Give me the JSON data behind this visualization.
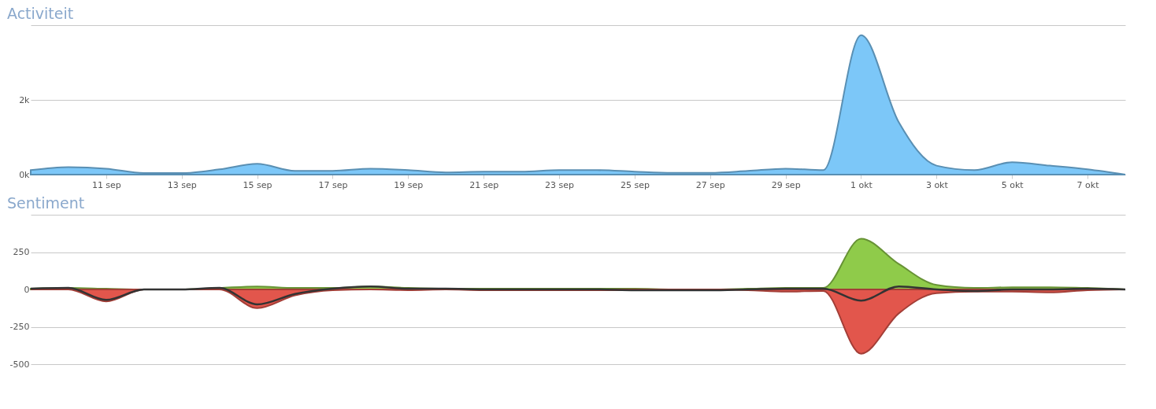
{
  "chart_data": [
    {
      "type": "area",
      "title": "Activiteit",
      "grid": "y",
      "x": [
        "--09-09",
        "--09-10",
        "--09-11",
        "--09-12",
        "--09-13",
        "--09-14",
        "--09-15",
        "--09-16",
        "--09-17",
        "--09-18",
        "--09-19",
        "--09-20",
        "--09-21",
        "--09-22",
        "--09-23",
        "--09-24",
        "--09-25",
        "--09-26",
        "--09-27",
        "--09-28",
        "--09-29",
        "--09-30",
        "--10-01",
        "--10-02",
        "--10-03",
        "--10-04",
        "--10-05",
        "--10-06",
        "--10-07",
        "--10-08"
      ],
      "series": [
        {
          "color": "#7cc7f8",
          "values": [
            120,
            200,
            160,
            40,
            40,
            140,
            290,
            100,
            100,
            160,
            120,
            60,
            80,
            80,
            120,
            120,
            80,
            50,
            50,
            100,
            160,
            120,
            3730,
            1400,
            240,
            120,
            330,
            240,
            140,
            0
          ]
        }
      ],
      "xlim": [
        "--09-09",
        "--10-08"
      ],
      "xticks": [
        {
          "value": "--09-11",
          "label": "11 sep"
        },
        {
          "value": "--09-13",
          "label": "13 sep"
        },
        {
          "value": "--09-15",
          "label": "15 sep"
        },
        {
          "value": "--09-17",
          "label": "17 sep"
        },
        {
          "value": "--09-19",
          "label": "19 sep"
        },
        {
          "value": "--09-21",
          "label": "21 sep"
        },
        {
          "value": "--09-23",
          "label": "23 sep"
        },
        {
          "value": "--09-25",
          "label": "25 sep"
        },
        {
          "value": "--09-27",
          "label": "27 sep"
        },
        {
          "value": "--09-29",
          "label": "29 sep"
        },
        {
          "value": "--10-01",
          "label": "1 okt"
        },
        {
          "value": "--10-03",
          "label": "3 okt"
        },
        {
          "value": "--10-05",
          "label": "5 okt"
        },
        {
          "value": "--10-07",
          "label": "7 okt"
        }
      ],
      "ylim": [
        0,
        4000
      ],
      "yticks": [
        {
          "value": 0,
          "label": "0k"
        },
        {
          "value": 2000,
          "label": "2k"
        },
        {
          "value": 4000,
          "label": null
        }
      ]
    },
    {
      "type": "area",
      "title": "Sentiment",
      "grid": "y",
      "tick_labels": "y",
      "x": [
        "--09-09",
        "--09-10",
        "--09-11",
        "--09-12",
        "--09-13",
        "--09-14",
        "--09-15",
        "--09-16",
        "--09-17",
        "--09-18",
        "--09-19",
        "--09-20",
        "--09-21",
        "--09-22",
        "--09-23",
        "--09-24",
        "--09-25",
        "--09-26",
        "--09-27",
        "--09-28",
        "--09-29",
        "--09-30",
        "--10-01",
        "--10-02",
        "--10-03",
        "--10-04",
        "--10-05",
        "--10-06",
        "--10-07",
        "--10-08"
      ],
      "series": [
        {
          "color": "#8fcb4a",
          "values": [
            5,
            10,
            5,
            0,
            0,
            10,
            20,
            10,
            10,
            20,
            10,
            5,
            5,
            5,
            5,
            5,
            5,
            0,
            0,
            5,
            10,
            10,
            340,
            170,
            30,
            10,
            15,
            15,
            10,
            0
          ]
        },
        {
          "color": "#e2564c",
          "values": [
            0,
            0,
            -80,
            0,
            0,
            0,
            -125,
            -40,
            -5,
            0,
            -5,
            0,
            -5,
            -5,
            -5,
            -5,
            -5,
            0,
            0,
            -5,
            -15,
            -10,
            -430,
            -160,
            -25,
            -15,
            -15,
            -20,
            -5,
            0
          ]
        },
        {
          "type": "line",
          "color": "#333333",
          "values": [
            5,
            10,
            -70,
            0,
            0,
            10,
            -100,
            -30,
            5,
            20,
            5,
            5,
            0,
            0,
            0,
            0,
            -5,
            -5,
            -5,
            0,
            5,
            5,
            -75,
            20,
            0,
            -10,
            0,
            0,
            5,
            0
          ]
        }
      ],
      "xlim": [
        "--09-09",
        "--10-08"
      ],
      "ylim": [
        -500,
        500
      ],
      "yticks": [
        {
          "value": 500,
          "label": null
        },
        250,
        0,
        -250,
        -500
      ]
    }
  ]
}
